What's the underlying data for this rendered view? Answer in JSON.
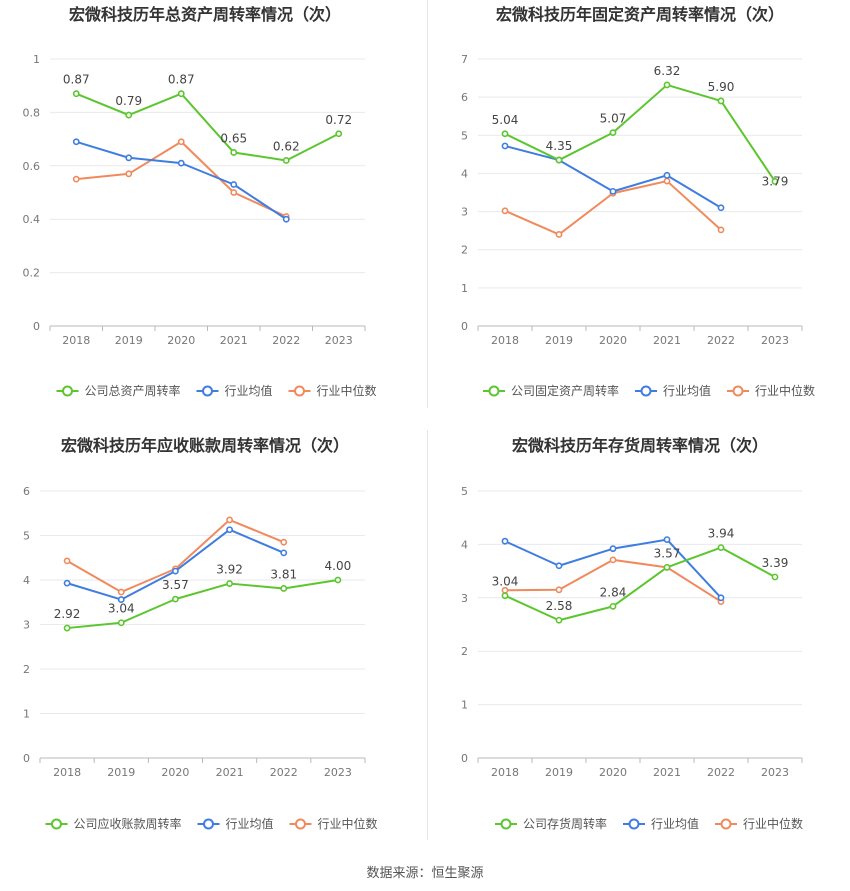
{
  "colors": {
    "company": "#5cc62f",
    "industry_avg": "#3f7de0",
    "industry_median": "#f08a5d",
    "grid": "#e9e9ee",
    "axis": "#b9b9b9",
    "tick_text": "#777777",
    "title": "#333333",
    "label": "#444444"
  },
  "footer": {
    "source": "数据来源：恒生聚源"
  },
  "chart_data": [
    {
      "type": "line",
      "title": "宏微科技历年总资产周转率情况（次）",
      "categories": [
        "2018",
        "2019",
        "2020",
        "2021",
        "2022",
        "2023"
      ],
      "ylim": [
        0,
        1
      ],
      "yticks": [
        "0",
        "0.2",
        "0.4",
        "0.6",
        "0.8",
        "1"
      ],
      "ytick_values": [
        0,
        0.2,
        0.4,
        0.6,
        0.8,
        1
      ],
      "grid": true,
      "legend_position": "bottom",
      "series": [
        {
          "name": "公司总资产周转率",
          "color_key": "company",
          "values": [
            0.87,
            0.79,
            0.87,
            0.65,
            0.62,
            0.72
          ],
          "labels": [
            "0.87",
            "0.79",
            "0.87",
            "0.65",
            "0.62",
            "0.72"
          ]
        },
        {
          "name": "行业均值",
          "color_key": "industry_avg",
          "values": [
            0.69,
            0.63,
            0.61,
            0.53,
            0.4,
            null
          ]
        },
        {
          "name": "行业中位数",
          "color_key": "industry_median",
          "values": [
            0.55,
            0.57,
            0.69,
            0.5,
            0.41,
            null
          ]
        }
      ]
    },
    {
      "type": "line",
      "title": "宏微科技历年固定资产周转率情况（次）",
      "categories": [
        "2018",
        "2019",
        "2020",
        "2021",
        "2022",
        "2023"
      ],
      "ylim": [
        0,
        7
      ],
      "yticks": [
        "0",
        "1",
        "2",
        "3",
        "4",
        "5",
        "6",
        "7"
      ],
      "ytick_values": [
        0,
        1,
        2,
        3,
        4,
        5,
        6,
        7
      ],
      "grid": true,
      "legend_position": "bottom",
      "series": [
        {
          "name": "公司固定资产周转率",
          "color_key": "company",
          "values": [
            5.04,
            4.35,
            5.07,
            6.32,
            5.9,
            3.79
          ],
          "labels": [
            "5.04",
            "4.35",
            "5.07",
            "6.32",
            "5.90",
            "3.79"
          ]
        },
        {
          "name": "行业均值",
          "color_key": "industry_avg",
          "values": [
            4.72,
            4.35,
            3.53,
            3.95,
            3.1,
            null
          ]
        },
        {
          "name": "行业中位数",
          "color_key": "industry_median",
          "values": [
            3.02,
            2.4,
            3.48,
            3.8,
            2.52,
            null
          ]
        }
      ]
    },
    {
      "type": "line",
      "title": "宏微科技历年应收账款周转率情况（次）",
      "categories": [
        "2018",
        "2019",
        "2020",
        "2021",
        "2022",
        "2023"
      ],
      "ylim": [
        0,
        6
      ],
      "yticks": [
        "0",
        "1",
        "2",
        "3",
        "4",
        "5",
        "6"
      ],
      "ytick_values": [
        0,
        1,
        2,
        3,
        4,
        5,
        6
      ],
      "grid": true,
      "legend_position": "bottom",
      "series": [
        {
          "name": "公司应收账款周转率",
          "color_key": "company",
          "values": [
            2.92,
            3.04,
            3.57,
            3.92,
            3.81,
            4.0
          ],
          "labels": [
            "2.92",
            "3.04",
            "3.57",
            "3.92",
            "3.81",
            "4.00"
          ]
        },
        {
          "name": "行业均值",
          "color_key": "industry_avg",
          "values": [
            3.93,
            3.56,
            4.2,
            5.13,
            4.61,
            null
          ]
        },
        {
          "name": "行业中位数",
          "color_key": "industry_median",
          "values": [
            4.43,
            3.73,
            4.25,
            5.35,
            4.85,
            null
          ]
        }
      ]
    },
    {
      "type": "line",
      "title": "宏微科技历年存货周转率情况（次）",
      "categories": [
        "2018",
        "2019",
        "2020",
        "2021",
        "2022",
        "2023"
      ],
      "ylim": [
        0,
        5
      ],
      "yticks": [
        "0",
        "1",
        "2",
        "3",
        "4",
        "5"
      ],
      "ytick_values": [
        0,
        1,
        2,
        3,
        4,
        5
      ],
      "grid": true,
      "legend_position": "bottom",
      "series": [
        {
          "name": "公司存货周转率",
          "color_key": "company",
          "values": [
            3.04,
            2.58,
            2.84,
            3.57,
            3.94,
            3.39
          ],
          "labels": [
            "3.04",
            "2.58",
            "2.84",
            "3.57",
            "3.94",
            "3.39"
          ]
        },
        {
          "name": "行业均值",
          "color_key": "industry_avg",
          "values": [
            4.06,
            3.6,
            3.92,
            4.09,
            3.0,
            null
          ]
        },
        {
          "name": "行业中位数",
          "color_key": "industry_median",
          "values": [
            3.14,
            3.15,
            3.71,
            3.57,
            2.93,
            null
          ]
        }
      ]
    }
  ]
}
